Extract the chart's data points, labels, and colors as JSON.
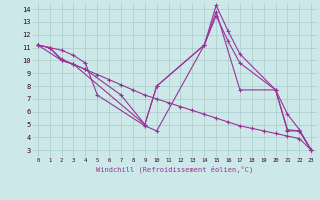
{
  "xlabel": "Windchill (Refroidissement éolien,°C)",
  "xlim": [
    -0.5,
    23.5
  ],
  "ylim": [
    2.5,
    14.5
  ],
  "xticks": [
    0,
    1,
    2,
    3,
    4,
    5,
    6,
    7,
    8,
    9,
    10,
    11,
    12,
    13,
    14,
    15,
    16,
    17,
    18,
    19,
    20,
    21,
    22,
    23
  ],
  "yticks": [
    3,
    4,
    5,
    6,
    7,
    8,
    9,
    10,
    11,
    12,
    13,
    14
  ],
  "bg_color": "#cce8e8",
  "grid_color": "#aacccc",
  "line_color": "#993399",
  "lines": [
    {
      "x": [
        0,
        1,
        2,
        3,
        4,
        5,
        9,
        10,
        14,
        15,
        16,
        17,
        20,
        21,
        22,
        23
      ],
      "y": [
        11.2,
        11.0,
        10.8,
        10.4,
        9.8,
        7.3,
        4.9,
        4.5,
        11.2,
        14.3,
        12.3,
        10.5,
        7.7,
        5.8,
        4.6,
        3.0
      ]
    },
    {
      "x": [
        0,
        1,
        2,
        3,
        9,
        10,
        14,
        15,
        16,
        17,
        20,
        21,
        22,
        23
      ],
      "y": [
        11.2,
        11.0,
        10.1,
        9.7,
        5.0,
        8.0,
        11.2,
        13.5,
        11.5,
        9.8,
        7.7,
        4.6,
        4.5,
        3.0
      ]
    },
    {
      "x": [
        0,
        1,
        2,
        3,
        4,
        5,
        6,
        7,
        8,
        9,
        10,
        11,
        12,
        13,
        14,
        15,
        16,
        17,
        18,
        19,
        20,
        21,
        22,
        23
      ],
      "y": [
        11.2,
        11.0,
        10.0,
        9.7,
        9.3,
        8.9,
        8.5,
        8.1,
        7.7,
        7.3,
        7.0,
        6.7,
        6.4,
        6.1,
        5.8,
        5.5,
        5.2,
        4.9,
        4.7,
        4.5,
        4.3,
        4.1,
        3.9,
        3.0
      ]
    },
    {
      "x": [
        0,
        2,
        3,
        4,
        7,
        9,
        10,
        14,
        15,
        17,
        20,
        21,
        22,
        23
      ],
      "y": [
        11.2,
        10.0,
        9.7,
        9.3,
        7.3,
        5.0,
        8.0,
        11.2,
        13.8,
        7.7,
        7.7,
        4.5,
        4.5,
        3.0
      ]
    }
  ]
}
